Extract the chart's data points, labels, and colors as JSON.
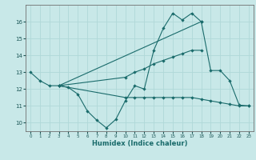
{
  "xlabel": "Humidex (Indice chaleur)",
  "bg_color": "#c8e8e8",
  "grid_color": "#b0d8d8",
  "line_color": "#1a6b6b",
  "line1_x": [
    0,
    1,
    2,
    3,
    4,
    5,
    6,
    7,
    8,
    9,
    10,
    11,
    12,
    13,
    14,
    15,
    16,
    17,
    18
  ],
  "line1_y": [
    13.0,
    12.5,
    12.2,
    12.2,
    12.1,
    11.7,
    10.7,
    10.15,
    9.7,
    10.2,
    11.3,
    12.2,
    12.0,
    14.3,
    15.6,
    16.5,
    16.1,
    16.5,
    16.0
  ],
  "line2_x": [
    3,
    10,
    11,
    12,
    13,
    14,
    15,
    16,
    17,
    18
  ],
  "line2_y": [
    12.2,
    12.7,
    13.0,
    13.2,
    13.5,
    13.7,
    13.9,
    14.1,
    14.3,
    14.3
  ],
  "line3_x": [
    3,
    10,
    11,
    12,
    13,
    14,
    15,
    16,
    17,
    18,
    19,
    20,
    21,
    22,
    23
  ],
  "line3_y": [
    12.2,
    11.5,
    11.5,
    11.5,
    11.5,
    11.5,
    11.5,
    11.5,
    11.5,
    11.4,
    11.3,
    11.2,
    11.1,
    11.0,
    11.0
  ],
  "line4_x": [
    3,
    18,
    19,
    20,
    21,
    22,
    23
  ],
  "line4_y": [
    12.2,
    16.0,
    13.1,
    13.1,
    12.5,
    11.05,
    11.0
  ],
  "ylim": [
    9.5,
    17.0
  ],
  "xlim": [
    -0.5,
    23.5
  ],
  "yticks": [
    10,
    11,
    12,
    13,
    14,
    15,
    16
  ],
  "xticks": [
    0,
    1,
    2,
    3,
    4,
    5,
    6,
    7,
    8,
    9,
    10,
    11,
    12,
    13,
    14,
    15,
    16,
    17,
    18,
    19,
    20,
    21,
    22,
    23
  ]
}
